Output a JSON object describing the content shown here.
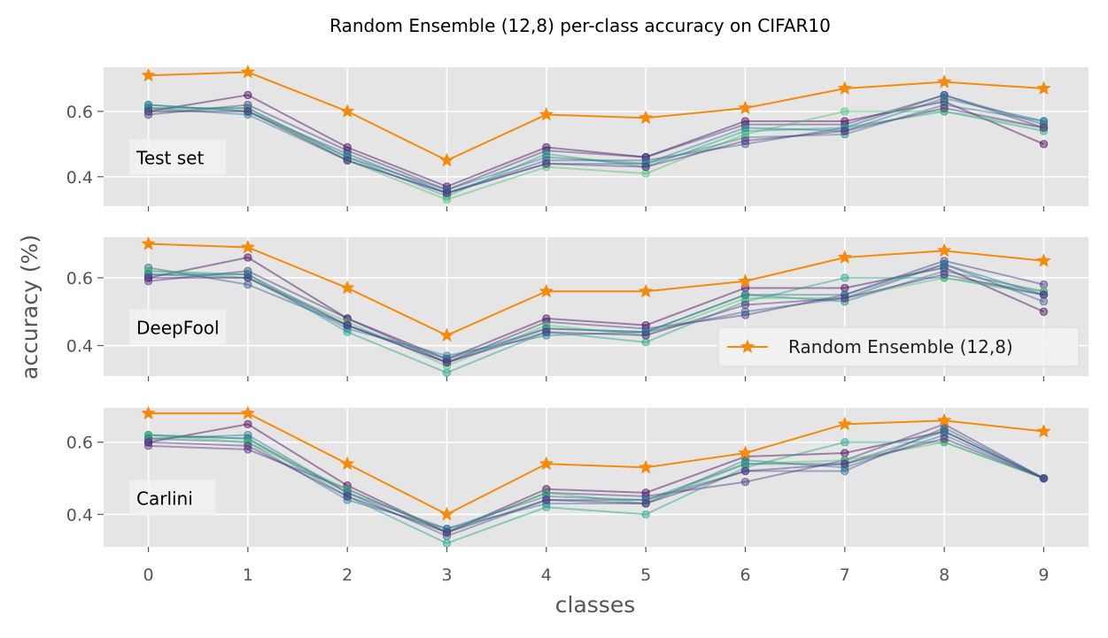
{
  "chart_data": {
    "type": "line",
    "title": "Random Ensemble (12,8) per-class accuracy on CIFAR10",
    "xlabel": "classes",
    "ylabel": "accuracy (%)",
    "x": [
      0,
      1,
      2,
      3,
      4,
      5,
      6,
      7,
      8,
      9
    ],
    "x_tick_labels": [
      "0",
      "1",
      "2",
      "3",
      "4",
      "5",
      "6",
      "7",
      "8",
      "9"
    ],
    "y_tick_labels": [
      "0.4",
      "0.6"
    ],
    "legend": {
      "entries": [
        "Random Ensemble (12,8)"
      ],
      "placement": "lower-right of middle panel"
    },
    "grid": true,
    "colors": {
      "ensemble": "#f58a0b",
      "panel_bg": "#e5e5e5",
      "grid": "#ffffff",
      "member_palette": [
        "#440154",
        "#46327e",
        "#365c8d",
        "#277f8e",
        "#1fa187",
        "#4ac16d",
        "#2a788e",
        "#5b2a86"
      ]
    },
    "panels": [
      {
        "label": "Test set",
        "ylim": [
          0.31,
          0.735
        ],
        "ensemble": [
          0.71,
          0.72,
          0.6,
          0.45,
          0.59,
          0.58,
          0.61,
          0.67,
          0.69,
          0.67
        ],
        "members": [
          [
            0.6,
            0.65,
            0.49,
            0.37,
            0.49,
            0.46,
            0.57,
            0.57,
            0.63,
            0.5
          ],
          [
            0.59,
            0.62,
            0.48,
            0.36,
            0.48,
            0.46,
            0.56,
            0.56,
            0.65,
            0.55
          ],
          [
            0.62,
            0.6,
            0.47,
            0.35,
            0.45,
            0.45,
            0.5,
            0.55,
            0.65,
            0.56
          ],
          [
            0.61,
            0.59,
            0.45,
            0.35,
            0.44,
            0.44,
            0.52,
            0.53,
            0.62,
            0.57
          ],
          [
            0.62,
            0.6,
            0.46,
            0.34,
            0.47,
            0.43,
            0.54,
            0.55,
            0.6,
            0.54
          ],
          [
            0.6,
            0.61,
            0.45,
            0.33,
            0.43,
            0.41,
            0.53,
            0.6,
            0.6,
            0.55
          ],
          [
            0.61,
            0.61,
            0.46,
            0.36,
            0.46,
            0.44,
            0.55,
            0.54,
            0.64,
            0.57
          ],
          [
            0.6,
            0.6,
            0.45,
            0.35,
            0.44,
            0.43,
            0.51,
            0.54,
            0.61,
            0.55
          ]
        ]
      },
      {
        "label": "DeepFool",
        "ylim": [
          0.31,
          0.72
        ],
        "ensemble": [
          0.7,
          0.69,
          0.57,
          0.43,
          0.56,
          0.56,
          0.59,
          0.66,
          0.68,
          0.65
        ],
        "members": [
          [
            0.6,
            0.66,
            0.48,
            0.36,
            0.48,
            0.46,
            0.57,
            0.57,
            0.63,
            0.5
          ],
          [
            0.59,
            0.62,
            0.48,
            0.35,
            0.47,
            0.45,
            0.49,
            0.55,
            0.65,
            0.58
          ],
          [
            0.63,
            0.58,
            0.46,
            0.35,
            0.45,
            0.44,
            0.5,
            0.54,
            0.64,
            0.53
          ],
          [
            0.61,
            0.6,
            0.45,
            0.37,
            0.43,
            0.44,
            0.55,
            0.53,
            0.62,
            0.56
          ],
          [
            0.62,
            0.61,
            0.44,
            0.32,
            0.44,
            0.41,
            0.53,
            0.6,
            0.6,
            0.55
          ],
          [
            0.62,
            0.6,
            0.47,
            0.34,
            0.46,
            0.43,
            0.54,
            0.54,
            0.6,
            0.56
          ],
          [
            0.61,
            0.61,
            0.46,
            0.36,
            0.45,
            0.44,
            0.55,
            0.55,
            0.64,
            0.55
          ],
          [
            0.6,
            0.6,
            0.46,
            0.35,
            0.44,
            0.43,
            0.52,
            0.54,
            0.61,
            0.55
          ]
        ]
      },
      {
        "label": "Carlini",
        "ylim": [
          0.31,
          0.695
        ],
        "ensemble": [
          0.68,
          0.68,
          0.54,
          0.4,
          0.54,
          0.53,
          0.57,
          0.65,
          0.66,
          0.63
        ],
        "members": [
          [
            0.6,
            0.65,
            0.48,
            0.35,
            0.47,
            0.46,
            0.56,
            0.57,
            0.63,
            0.5
          ],
          [
            0.59,
            0.58,
            0.47,
            0.35,
            0.46,
            0.45,
            0.49,
            0.55,
            0.65,
            0.5
          ],
          [
            0.62,
            0.61,
            0.46,
            0.34,
            0.44,
            0.44,
            0.52,
            0.52,
            0.64,
            0.5
          ],
          [
            0.61,
            0.6,
            0.44,
            0.36,
            0.43,
            0.43,
            0.55,
            0.53,
            0.62,
            0.5
          ],
          [
            0.62,
            0.61,
            0.45,
            0.32,
            0.42,
            0.4,
            0.53,
            0.6,
            0.6,
            0.5
          ],
          [
            0.62,
            0.6,
            0.47,
            0.35,
            0.46,
            0.43,
            0.54,
            0.55,
            0.6,
            0.5
          ],
          [
            0.61,
            0.62,
            0.46,
            0.36,
            0.45,
            0.44,
            0.54,
            0.54,
            0.63,
            0.5
          ],
          [
            0.6,
            0.59,
            0.45,
            0.35,
            0.44,
            0.43,
            0.52,
            0.54,
            0.61,
            0.5
          ]
        ]
      }
    ]
  }
}
